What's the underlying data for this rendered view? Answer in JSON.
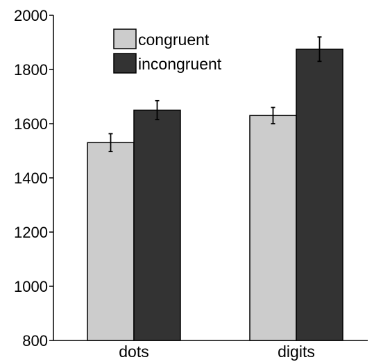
{
  "chart_data": {
    "type": "bar",
    "title": "",
    "xlabel": "",
    "ylabel": "",
    "categories": [
      "dots",
      "digits"
    ],
    "series": [
      {
        "name": "congruent",
        "color": "#cccccc",
        "values": [
          1530,
          1630
        ],
        "errors": [
          33,
          30
        ]
      },
      {
        "name": "incongruent",
        "color": "#333333",
        "values": [
          1650,
          1875
        ],
        "errors": [
          35,
          45
        ]
      }
    ],
    "ylim": [
      800,
      2000
    ],
    "yticks": [
      800,
      1000,
      1200,
      1400,
      1600,
      1800,
      2000
    ],
    "grid": false,
    "legend_position": "top-left"
  }
}
